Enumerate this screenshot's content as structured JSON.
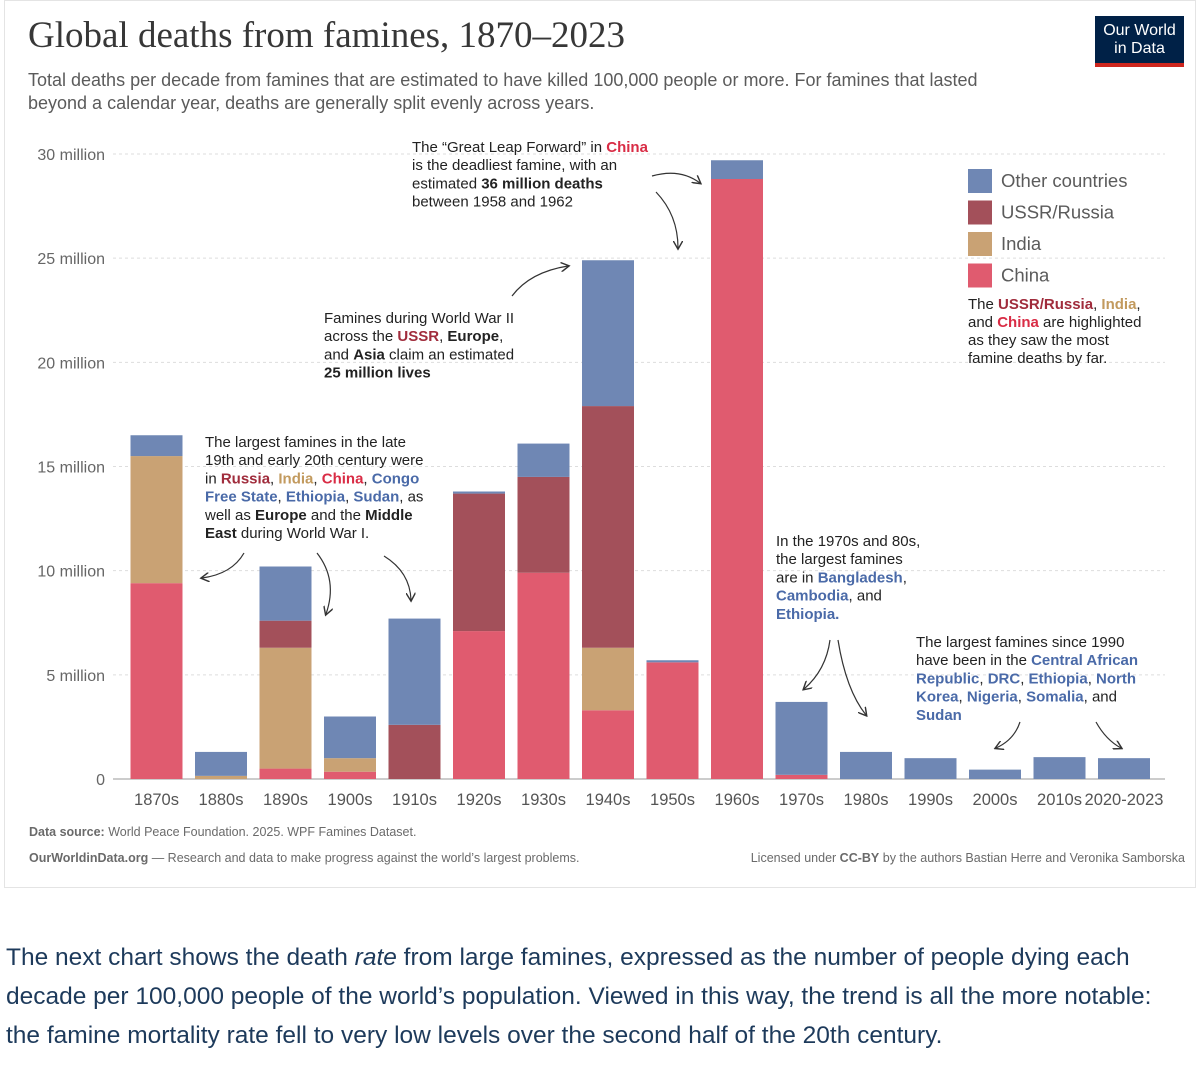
{
  "logo": {
    "line1": "Our World",
    "line2": "in Data"
  },
  "colors": {
    "china": "#e05b6f",
    "india": "#c9a274",
    "ussr": "#a3505a",
    "other": "#6f87b4",
    "china_text": "#d92c45",
    "india_text": "#c29a5e",
    "ussr_text": "#a02c3c",
    "other_text": "#4a6aa8"
  },
  "chart_data": {
    "type": "bar",
    "stacked": true,
    "title": "Global deaths from famines, 1870–2023",
    "subtitle_lines": [
      "Total deaths per decade from famines that are estimated to have killed 100,000 people or more. For famines that lasted",
      "beyond a calendar year, deaths are generally split evenly across years."
    ],
    "categories": [
      "1870s",
      "1880s",
      "1890s",
      "1900s",
      "1910s",
      "1920s",
      "1930s",
      "1940s",
      "1950s",
      "1960s",
      "1970s",
      "1980s",
      "1990s",
      "2000s",
      "2010s",
      "2020-2023"
    ],
    "series": [
      {
        "name": "China",
        "color": "#e05b6f",
        "values": [
          9.4,
          0,
          0.5,
          0.35,
          0,
          7.1,
          9.9,
          3.3,
          5.6,
          28.8,
          0.2,
          0,
          0,
          0,
          0,
          0
        ]
      },
      {
        "name": "India",
        "color": "#c9a274",
        "values": [
          6.1,
          0.15,
          5.8,
          0.65,
          0,
          0,
          0,
          3.0,
          0,
          0,
          0,
          0,
          0,
          0,
          0,
          0
        ]
      },
      {
        "name": "USSR/Russia",
        "color": "#a3505a",
        "values": [
          0,
          0,
          1.3,
          0,
          2.6,
          6.6,
          4.6,
          11.6,
          0,
          0,
          0,
          0,
          0,
          0,
          0,
          0
        ]
      },
      {
        "name": "Other countries",
        "color": "#6f87b4",
        "values": [
          1.0,
          1.15,
          2.6,
          2.0,
          5.1,
          0.1,
          1.6,
          7.0,
          0.1,
          0.9,
          3.5,
          1.3,
          1.0,
          0.45,
          1.05,
          1.0
        ]
      }
    ],
    "ylim": [
      0,
      30
    ],
    "yticks": [
      {
        "value": 0,
        "label": "0"
      },
      {
        "value": 5,
        "label": "5 million"
      },
      {
        "value": 10,
        "label": "10 million"
      },
      {
        "value": 15,
        "label": "15 million"
      },
      {
        "value": 20,
        "label": "20 million"
      },
      {
        "value": 25,
        "label": "25 million"
      },
      {
        "value": 30,
        "label": "30 million"
      }
    ],
    "grid": true,
    "legend": {
      "placement": "top-right",
      "items": [
        {
          "label": "Other countries",
          "color": "#6f87b4"
        },
        {
          "label": "USSR/Russia",
          "color": "#a3505a"
        },
        {
          "label": "India",
          "color": "#c9a274"
        },
        {
          "label": "China",
          "color": "#e05b6f"
        }
      ],
      "note": [
        [
          {
            "t": "The "
          },
          {
            "t": "USSR/Russia",
            "c": "ussr_text",
            "b": true
          },
          {
            "t": ", "
          },
          {
            "t": "India",
            "c": "india_text",
            "b": true
          },
          {
            "t": ","
          }
        ],
        [
          {
            "t": "and "
          },
          {
            "t": "China",
            "c": "china_text",
            "b": true
          },
          {
            "t": " are highlighted"
          }
        ],
        [
          {
            "t": "as they saw the most"
          }
        ],
        [
          {
            "t": "famine deaths by far."
          }
        ]
      ]
    },
    "annotations": [
      {
        "id": "great-leap",
        "lines": [
          [
            {
              "t": "The “Great Leap Forward” in "
            },
            {
              "t": "China",
              "c": "china_text",
              "b": true
            }
          ],
          [
            {
              "t": "is the deadliest famine, with an"
            }
          ],
          [
            {
              "t": "estimated "
            },
            {
              "t": "36 million deaths",
              "b": true
            }
          ],
          [
            {
              "t": "between 1958 and 1962"
            }
          ]
        ]
      },
      {
        "id": "ww2",
        "lines": [
          [
            {
              "t": "Famines during World War II"
            }
          ],
          [
            {
              "t": "across the "
            },
            {
              "t": "USSR",
              "c": "ussr_text",
              "b": true
            },
            {
              "t": ", "
            },
            {
              "t": "Europe",
              "b": true
            },
            {
              "t": ","
            }
          ],
          [
            {
              "t": "and "
            },
            {
              "t": "Asia",
              "b": true
            },
            {
              "t": " claim an estimated"
            }
          ],
          [
            {
              "t": "25 million lives",
              "b": true
            }
          ]
        ]
      },
      {
        "id": "late-19th",
        "lines": [
          [
            {
              "t": "The largest famines in the late"
            }
          ],
          [
            {
              "t": "19th and early 20th century were"
            }
          ],
          [
            {
              "t": "in "
            },
            {
              "t": "Russia",
              "c": "ussr_text",
              "b": true
            },
            {
              "t": ", "
            },
            {
              "t": "India",
              "c": "india_text",
              "b": true
            },
            {
              "t": ", "
            },
            {
              "t": "China",
              "c": "china_text",
              "b": true
            },
            {
              "t": ", "
            },
            {
              "t": "Congo",
              "c": "other_text",
              "b": true
            }
          ],
          [
            {
              "t": "Free State",
              "c": "other_text",
              "b": true
            },
            {
              "t": ", "
            },
            {
              "t": "Ethiopia",
              "c": "other_text",
              "b": true
            },
            {
              "t": ", "
            },
            {
              "t": "Sudan",
              "c": "other_text",
              "b": true
            },
            {
              "t": ", as"
            }
          ],
          [
            {
              "t": "well as "
            },
            {
              "t": "Europe",
              "b": true
            },
            {
              "t": " and the "
            },
            {
              "t": "Middle",
              "b": true
            }
          ],
          [
            {
              "t": "East",
              "b": true
            },
            {
              "t": " during World War I."
            }
          ]
        ]
      },
      {
        "id": "1970s-80s",
        "lines": [
          [
            {
              "t": "In the 1970s and 80s,"
            }
          ],
          [
            {
              "t": "the largest famines"
            }
          ],
          [
            {
              "t": "are in "
            },
            {
              "t": "Bangladesh",
              "c": "other_text",
              "b": true
            },
            {
              "t": ","
            }
          ],
          [
            {
              "t": "Cambodia",
              "c": "other_text",
              "b": true
            },
            {
              "t": ", and"
            }
          ],
          [
            {
              "t": "Ethiopia.",
              "c": "other_text",
              "b": true
            }
          ]
        ]
      },
      {
        "id": "since-1990",
        "lines": [
          [
            {
              "t": "The largest famines since 1990"
            }
          ],
          [
            {
              "t": "have been in the "
            },
            {
              "t": "Central African",
              "c": "other_text",
              "b": true
            }
          ],
          [
            {
              "t": "Republic",
              "c": "other_text",
              "b": true
            },
            {
              "t": ", "
            },
            {
              "t": "DRC",
              "c": "other_text",
              "b": true
            },
            {
              "t": ", "
            },
            {
              "t": "Ethiopia",
              "c": "other_text",
              "b": true
            },
            {
              "t": ", "
            },
            {
              "t": "North",
              "c": "other_text",
              "b": true
            }
          ],
          [
            {
              "t": "Korea",
              "c": "other_text",
              "b": true
            },
            {
              "t": ", "
            },
            {
              "t": "Nigeria",
              "c": "other_text",
              "b": true
            },
            {
              "t": ", "
            },
            {
              "t": "Somalia",
              "c": "other_text",
              "b": true
            },
            {
              "t": ", and"
            }
          ],
          [
            {
              "t": "Sudan",
              "c": "other_text",
              "b": true
            }
          ]
        ]
      }
    ],
    "footer": {
      "source_label": "Data source:",
      "source_text": " World Peace Foundation. 2025. WPF Famines Dataset.",
      "owid_label": "OurWorldinData.org",
      "owid_text": " — Research and data to make progress against the world’s largest problems.",
      "license_pre": "Licensed under ",
      "license_bold": "CC-BY",
      "license_post": " by the authors Bastian Herre and Veronika Samborska"
    }
  },
  "paragraph": {
    "pre": "The next chart shows the death ",
    "em": "rate",
    "post": " from large famines, expressed as the number of people dying each decade per 100,000 people of the world’s population. Viewed in this way, the trend is all the more notable: the famine mortality rate fell to very low levels over the second half of the 20th century."
  }
}
